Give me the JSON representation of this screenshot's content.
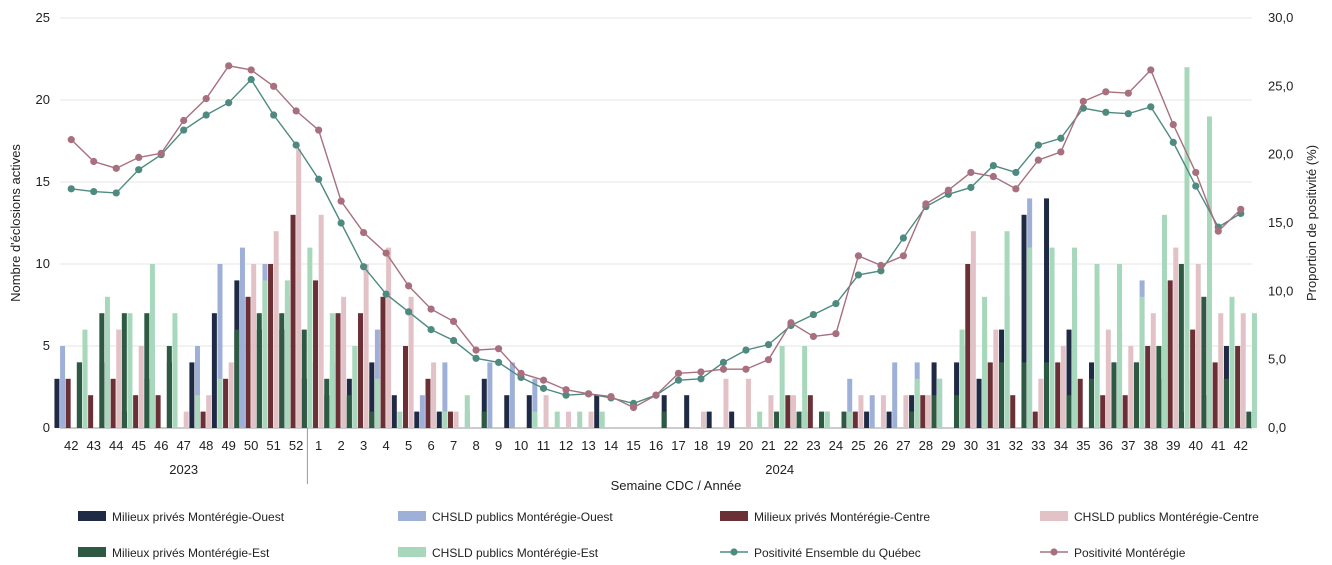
{
  "chart_data": {
    "type": "bar",
    "subtype": "grouped-bar-with-lines",
    "xlabel": "Semaine CDC / Année",
    "ylabel": "Nombre d'éclosions actives",
    "y2label": "Proportion de positivité (%)",
    "ylim": [
      0,
      25
    ],
    "y2lim": [
      0,
      30
    ],
    "yticks": [
      "0",
      "5",
      "10",
      "15",
      "20",
      "25"
    ],
    "y2ticks": [
      "0,0",
      "5,0",
      "10,0",
      "15,0",
      "20,0",
      "25,0",
      "30,0"
    ],
    "grid": "horizontal",
    "legend_position": "bottom",
    "year_groups": [
      {
        "label": "2023",
        "from": 0,
        "to": 10
      },
      {
        "label": "2024",
        "from": 11,
        "to": 52
      }
    ],
    "categories": [
      "42",
      "43",
      "44",
      "45",
      "46",
      "47",
      "48",
      "49",
      "50",
      "51",
      "52",
      "1",
      "2",
      "3",
      "4",
      "5",
      "6",
      "7",
      "8",
      "9",
      "10",
      "11",
      "12",
      "13",
      "14",
      "15",
      "16",
      "17",
      "18",
      "19",
      "20",
      "21",
      "22",
      "23",
      "24",
      "25",
      "26",
      "27",
      "28",
      "29",
      "30",
      "31",
      "32",
      "33",
      "34",
      "35",
      "36",
      "37",
      "38",
      "39",
      "40",
      "41",
      "42"
    ],
    "bar_series": [
      {
        "name": "Milieux privés Montérégie-Ouest",
        "color": "#1f2a44",
        "values": [
          3,
          4,
          4,
          1,
          3,
          4,
          4,
          7,
          9,
          6,
          6,
          3,
          2,
          3,
          4,
          2,
          1,
          1,
          0,
          3,
          2,
          2,
          0,
          0,
          2,
          0,
          0,
          2,
          2,
          1,
          1,
          0,
          0,
          0,
          0,
          0,
          1,
          1,
          2,
          4,
          4,
          3,
          6,
          13,
          14,
          6,
          4,
          4,
          4,
          3,
          1,
          2,
          5
        ]
      },
      {
        "name": "CHSLD publics Montérégie-Ouest",
        "color": "#9fb0d8",
        "values": [
          5,
          5,
          6,
          2,
          5,
          6,
          5,
          10,
          11,
          10,
          8,
          4,
          4,
          5,
          6,
          0,
          2,
          4,
          1,
          4,
          4,
          3,
          0,
          0,
          0,
          0,
          0,
          0,
          0,
          0,
          0,
          0,
          0,
          1,
          1,
          3,
          2,
          4,
          4,
          3,
          5,
          6,
          8,
          14,
          0,
          8,
          8,
          6,
          9,
          7,
          3,
          4,
          6
        ]
      },
      {
        "name": "Milieux privés  Montérégie-Centre",
        "color": "#6b2f36",
        "values": [
          3,
          2,
          3,
          2,
          2,
          0,
          1,
          3,
          8,
          10,
          13,
          9,
          7,
          7,
          8,
          5,
          3,
          1,
          0,
          0,
          0,
          0,
          0,
          0,
          0,
          0,
          0,
          0,
          0,
          0,
          0,
          0,
          2,
          2,
          0,
          1,
          0,
          0,
          2,
          0,
          10,
          4,
          2,
          1,
          4,
          3,
          2,
          2,
          5,
          9,
          6,
          4,
          5
        ]
      },
      {
        "name": "CHSLD publics Montérégie-Centre",
        "color": "#e2c2c6",
        "values": [
          0,
          0,
          6,
          5,
          0,
          1,
          2,
          4,
          10,
          12,
          17,
          13,
          8,
          10,
          11,
          8,
          4,
          1,
          0,
          0,
          0,
          2,
          1,
          1,
          0,
          0,
          0,
          0,
          1,
          3,
          3,
          2,
          2,
          0,
          0,
          2,
          2,
          2,
          2,
          0,
          12,
          6,
          0,
          3,
          5,
          0,
          6,
          5,
          7,
          11,
          10,
          7,
          7
        ]
      },
      {
        "name": "Milieux privés Montérégie-Est",
        "color": "#2e5a44",
        "values": [
          4,
          7,
          7,
          7,
          5,
          0,
          0,
          6,
          7,
          7,
          6,
          3,
          2,
          1,
          0,
          0,
          0,
          0,
          1,
          0,
          0,
          0,
          0,
          0,
          0,
          0,
          1,
          0,
          0,
          0,
          0,
          1,
          1,
          1,
          1,
          0,
          0,
          1,
          2,
          2,
          0,
          4,
          4,
          4,
          2,
          3,
          4,
          4,
          5,
          10,
          8,
          3,
          1
        ]
      },
      {
        "name": "CHSLD publics Montérégie-Est",
        "color": "#a8d8bc",
        "values": [
          6,
          8,
          7,
          10,
          7,
          2,
          3,
          0,
          9,
          9,
          11,
          7,
          5,
          3,
          1,
          0,
          1,
          2,
          0,
          0,
          1,
          1,
          1,
          1,
          0,
          0,
          0,
          0,
          0,
          0,
          1,
          5,
          5,
          1,
          1,
          0,
          0,
          3,
          3,
          6,
          8,
          12,
          11,
          11,
          11,
          10,
          10,
          8,
          13,
          22,
          19,
          8,
          7
        ]
      }
    ],
    "line_series": [
      {
        "name": "Positivité Ensemble du Québec",
        "color": "#4f8a80",
        "values": [
          17.5,
          17.3,
          17.2,
          18.9,
          20.0,
          21.8,
          22.9,
          23.8,
          25.5,
          22.9,
          20.7,
          18.2,
          15.0,
          11.8,
          9.8,
          8.5,
          7.2,
          6.4,
          5.1,
          4.8,
          3.7,
          2.9,
          2.4,
          2.5,
          2.2,
          1.8,
          2.4,
          3.5,
          3.6,
          4.8,
          5.7,
          6.1,
          7.5,
          8.3,
          9.1,
          11.2,
          11.5,
          13.9,
          16.2,
          17.1,
          17.6,
          19.2,
          18.7,
          20.7,
          21.2,
          23.4,
          23.1,
          23.0,
          23.5,
          20.9,
          17.7,
          14.7,
          15.7
        ]
      },
      {
        "name": "Positivité Montérégie",
        "color": "#a8707e",
        "values": [
          21.1,
          19.5,
          19.0,
          19.8,
          20.1,
          22.5,
          24.1,
          26.5,
          26.2,
          25.0,
          23.2,
          21.8,
          16.6,
          14.3,
          12.8,
          10.4,
          8.7,
          7.8,
          5.7,
          5.8,
          4.0,
          3.5,
          2.8,
          2.5,
          2.3,
          1.5,
          2.4,
          4.0,
          4.1,
          4.3,
          4.3,
          5.0,
          7.7,
          6.7,
          6.9,
          12.6,
          11.9,
          12.6,
          16.4,
          17.4,
          18.7,
          18.4,
          17.5,
          19.6,
          20.2,
          23.9,
          24.6,
          24.5,
          26.2,
          22.2,
          18.7,
          14.4,
          16.0
        ]
      }
    ]
  }
}
